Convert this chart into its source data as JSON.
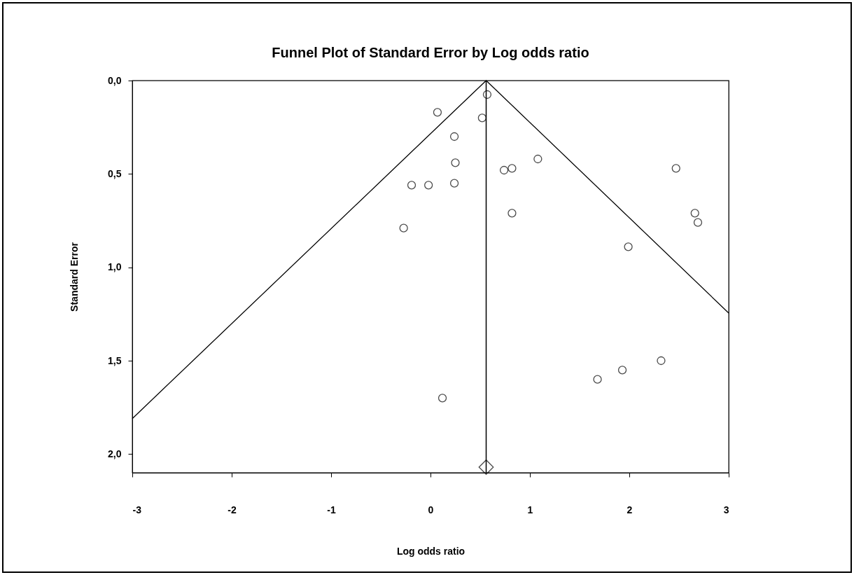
{
  "chart_data": {
    "type": "scatter",
    "title": "Funnel Plot of Standard Error by Log odds ratio",
    "xlabel": "Log odds ratio",
    "ylabel": "Standard Error",
    "xlim": [
      -3,
      3
    ],
    "xticks": [
      -3,
      -2,
      -1,
      0,
      1,
      2,
      3
    ],
    "ylim": [
      2.1,
      0
    ],
    "yticks": [
      {
        "value": 0,
        "label": "0,0"
      },
      {
        "value": 0.5,
        "label": "0,5"
      },
      {
        "value": 1,
        "label": "1,0"
      },
      {
        "value": 1.5,
        "label": "1,5"
      },
      {
        "value": 2,
        "label": "2,0"
      }
    ],
    "grid": false,
    "series": [
      {
        "marker": "circle",
        "color": "#000000",
        "x": [
          0.57,
          0.07,
          0.52,
          0.24,
          0.25,
          0.24,
          -0.19,
          -0.02,
          -0.27,
          0.74,
          0.82,
          1.08,
          0.82,
          2.47,
          2.66,
          2.69,
          1.99,
          1.68,
          1.93,
          2.32,
          0.12
        ],
        "values": [
          0.075,
          0.17,
          0.2,
          0.3,
          0.44,
          0.55,
          0.56,
          0.56,
          0.79,
          0.48,
          0.47,
          0.42,
          0.71,
          0.47,
          0.71,
          0.76,
          0.89,
          1.6,
          1.55,
          1.5,
          1.7
        ]
      },
      {
        "type": "line",
        "line_style": "solid",
        "color": "#000000",
        "x": [
          -3,
          0.56,
          3
        ],
        "values": [
          1.81,
          0,
          1.245
        ]
      },
      {
        "marker": "diamond",
        "color": "#000000",
        "x": [
          0.56
        ],
        "values": [
          2.07
        ]
      }
    ],
    "ref_lines": [
      {
        "axis": "x",
        "value": 0.56,
        "color": "#000000"
      }
    ]
  }
}
